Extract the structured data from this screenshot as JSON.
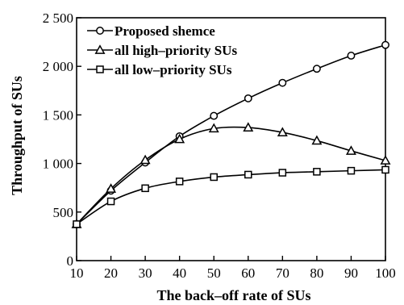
{
  "chart_data": {
    "type": "line",
    "title": "",
    "xlabel": "The back–off rate of SUs",
    "ylabel": "Throughput of SUs",
    "x": [
      10,
      20,
      30,
      40,
      50,
      60,
      70,
      80,
      90,
      100
    ],
    "xlim": [
      10,
      100
    ],
    "ylim": [
      0,
      2500
    ],
    "xticks": [
      10,
      20,
      30,
      40,
      50,
      60,
      70,
      80,
      90,
      100
    ],
    "xtick_labels": [
      "10",
      "20",
      "30",
      "40",
      "50",
      "60",
      "70",
      "80",
      "90",
      "100"
    ],
    "yticks": [
      0,
      500,
      1000,
      1500,
      2000,
      2500
    ],
    "ytick_labels": [
      "0",
      "500",
      "1 000",
      "1 500",
      "2 000",
      "2 500"
    ],
    "grid": false,
    "legend_position": "top-left",
    "series": [
      {
        "name": "Proposed shemce",
        "marker": "circle",
        "values": [
          375,
          720,
          1010,
          1280,
          1490,
          1670,
          1830,
          1975,
          2110,
          2220
        ]
      },
      {
        "name": "all high–priority SUs",
        "marker": "triangle",
        "values": [
          375,
          740,
          1035,
          1250,
          1360,
          1370,
          1320,
          1235,
          1130,
          1030
        ]
      },
      {
        "name": "all low–priority SUs",
        "marker": "square",
        "values": [
          375,
          610,
          745,
          815,
          860,
          885,
          905,
          915,
          925,
          935
        ]
      }
    ]
  }
}
